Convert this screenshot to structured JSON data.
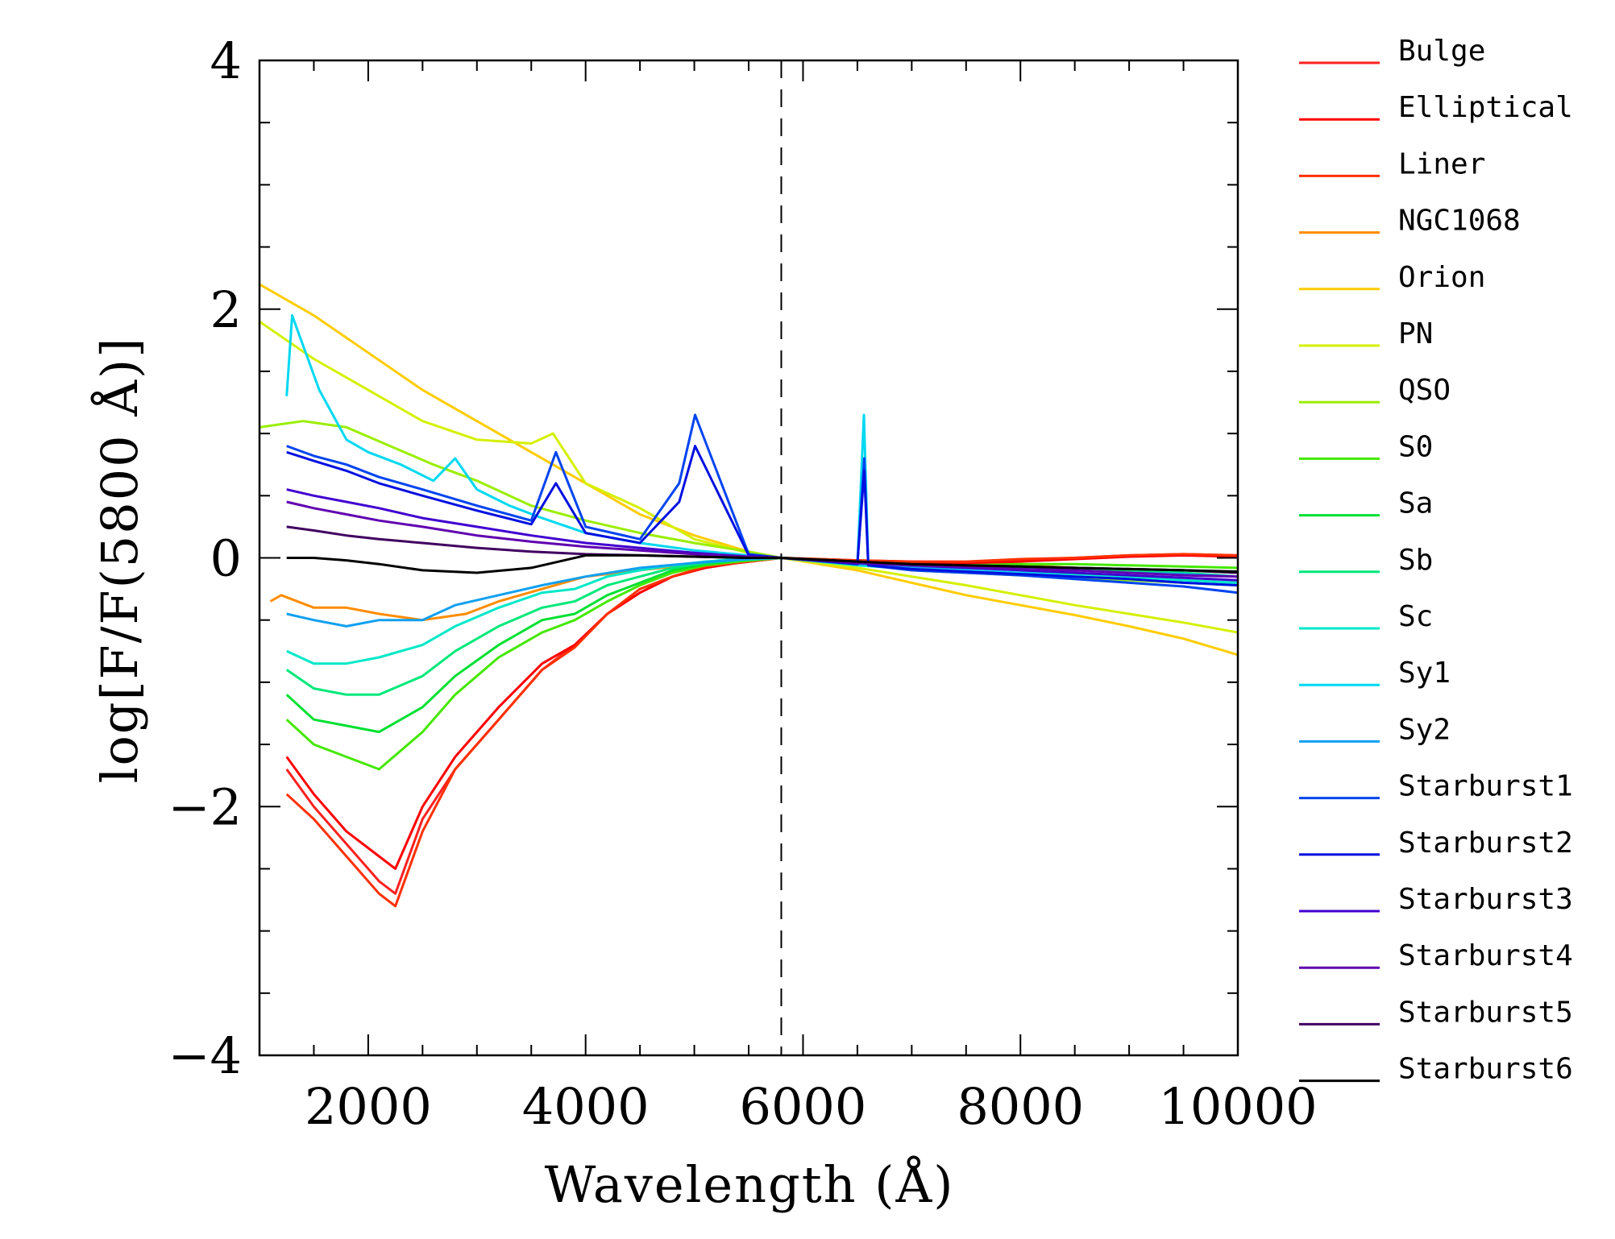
{
  "chart_data": {
    "type": "line",
    "xlabel": "Wavelength (Å)",
    "ylabel": "log[F/F(5800 Å)]",
    "xlim": [
      1000,
      10000
    ],
    "ylim": [
      -4,
      4
    ],
    "x_ticks": [
      2000,
      4000,
      6000,
      8000,
      10000
    ],
    "x_tick_labels": [
      "2000",
      "4000",
      "6000",
      "8000",
      "10000"
    ],
    "y_ticks": [
      -4,
      -2,
      0,
      2,
      4
    ],
    "y_tick_labels": [
      "−4",
      "−2",
      "0",
      "2",
      "4"
    ],
    "reference_line": {
      "x": 5800,
      "style": "dashed"
    },
    "legend_position": "right",
    "grid": false,
    "series": [
      {
        "name": "Bulge",
        "color": "#ff2020",
        "x": [
          1250,
          1500,
          1800,
          2100,
          2250,
          2500,
          2800,
          3200,
          3600,
          3900,
          4200,
          4500,
          4800,
          5100,
          5400,
          5800,
          6500,
          7000,
          7500,
          8000,
          8500,
          9000,
          9500,
          10000
        ],
        "y": [
          -1.7,
          -2.0,
          -2.3,
          -2.6,
          -2.7,
          -2.1,
          -1.7,
          -1.3,
          -0.9,
          -0.7,
          -0.45,
          -0.28,
          -0.15,
          -0.08,
          -0.04,
          0.0,
          -0.02,
          -0.03,
          -0.04,
          -0.02,
          0.0,
          0.02,
          0.03,
          0.02
        ]
      },
      {
        "name": "Elliptical",
        "color": "#ff0000",
        "x": [
          1250,
          1500,
          1800,
          2100,
          2250,
          2500,
          2800,
          3200,
          3600,
          3900,
          4200,
          4500,
          4800,
          5100,
          5400,
          5800,
          6500,
          7000,
          7500,
          8000,
          8500,
          9000,
          9500,
          10000
        ],
        "y": [
          -1.6,
          -1.9,
          -2.2,
          -2.4,
          -2.5,
          -2.0,
          -1.6,
          -1.2,
          -0.85,
          -0.7,
          -0.45,
          -0.28,
          -0.15,
          -0.08,
          -0.04,
          0.0,
          -0.03,
          -0.04,
          -0.05,
          -0.03,
          -0.01,
          0.01,
          0.02,
          0.01
        ]
      },
      {
        "name": "Liner",
        "color": "#ff3000",
        "x": [
          1250,
          1500,
          1800,
          2100,
          2250,
          2500,
          2800,
          3200,
          3600,
          3900,
          4200,
          4500,
          4800,
          5100,
          5400,
          5800,
          6500,
          7000,
          7500,
          8000,
          8500,
          9000,
          9500,
          10000
        ],
        "y": [
          -1.9,
          -2.1,
          -2.4,
          -2.7,
          -2.8,
          -2.2,
          -1.7,
          -1.3,
          -0.9,
          -0.72,
          -0.45,
          -0.25,
          -0.15,
          -0.07,
          -0.04,
          0.0,
          -0.02,
          -0.03,
          -0.03,
          -0.01,
          0.0,
          0.02,
          0.03,
          0.02
        ]
      },
      {
        "name": "NGC1068",
        "color": "#ff8c00",
        "x": [
          1100,
          1200,
          1500,
          1800,
          2100,
          2500,
          2900,
          3200,
          3600,
          4000,
          4500,
          5000,
          5500,
          5800,
          6500,
          7000,
          7500,
          8000,
          8500,
          9000,
          9500,
          10000
        ],
        "y": [
          -0.35,
          -0.3,
          -0.4,
          -0.4,
          -0.45,
          -0.5,
          -0.45,
          -0.35,
          -0.25,
          -0.15,
          -0.1,
          -0.05,
          -0.02,
          0.0,
          -0.05,
          -0.07,
          -0.08,
          -0.06,
          -0.08,
          -0.1,
          -0.1,
          -0.12
        ]
      },
      {
        "name": "Orion",
        "color": "#ffcc00",
        "x": [
          1000,
          1500,
          2000,
          2500,
          3000,
          3500,
          4000,
          4500,
          5000,
          5500,
          5800,
          6500,
          7000,
          7500,
          8000,
          8500,
          9000,
          9500,
          10000
        ],
        "y": [
          2.2,
          1.95,
          1.65,
          1.35,
          1.1,
          0.85,
          0.6,
          0.35,
          0.18,
          0.05,
          0.0,
          -0.1,
          -0.2,
          -0.3,
          -0.38,
          -0.46,
          -0.55,
          -0.65,
          -0.78
        ]
      },
      {
        "name": "PN",
        "color": "#d4f000",
        "x": [
          1000,
          1500,
          2000,
          2500,
          3000,
          3500,
          3700,
          4000,
          4500,
          5000,
          5500,
          5800,
          6500,
          7000,
          7500,
          8000,
          8500,
          9000,
          9500,
          10000
        ],
        "y": [
          1.9,
          1.6,
          1.35,
          1.1,
          0.95,
          0.92,
          1.0,
          0.6,
          0.4,
          0.15,
          0.04,
          0.0,
          -0.08,
          -0.15,
          -0.22,
          -0.3,
          -0.38,
          -0.45,
          -0.52,
          -0.6
        ]
      },
      {
        "name": "QSO",
        "color": "#9aee00",
        "x": [
          1000,
          1400,
          1800,
          2200,
          2600,
          3000,
          3500,
          4000,
          4500,
          5000,
          5500,
          5800,
          6500,
          7000,
          7500,
          8000,
          8500,
          9000,
          9500,
          10000
        ],
        "y": [
          1.05,
          1.1,
          1.05,
          0.9,
          0.75,
          0.62,
          0.42,
          0.3,
          0.2,
          0.12,
          0.05,
          0.0,
          -0.05,
          -0.1,
          -0.12,
          -0.14,
          -0.16,
          -0.18,
          -0.2,
          -0.22
        ]
      },
      {
        "name": "S0",
        "color": "#44e800",
        "x": [
          1250,
          1500,
          1800,
          2100,
          2500,
          2800,
          3200,
          3600,
          3900,
          4200,
          4500,
          4800,
          5100,
          5400,
          5800,
          6500,
          7000,
          7500,
          8000,
          8500,
          9000,
          9500,
          10000
        ],
        "y": [
          -1.3,
          -1.5,
          -1.6,
          -1.7,
          -1.4,
          -1.1,
          -0.8,
          -0.6,
          -0.5,
          -0.35,
          -0.22,
          -0.12,
          -0.06,
          -0.03,
          0.0,
          -0.03,
          -0.05,
          -0.06,
          -0.05,
          -0.05,
          -0.06,
          -0.07,
          -0.08
        ]
      },
      {
        "name": "Sa",
        "color": "#00e030",
        "x": [
          1250,
          1500,
          1800,
          2100,
          2500,
          2800,
          3200,
          3600,
          3900,
          4200,
          4500,
          4800,
          5100,
          5400,
          5800,
          6500,
          7000,
          7500,
          8000,
          8500,
          9000,
          9500,
          10000
        ],
        "y": [
          -1.1,
          -1.3,
          -1.35,
          -1.4,
          -1.2,
          -0.95,
          -0.7,
          -0.5,
          -0.45,
          -0.3,
          -0.2,
          -0.1,
          -0.05,
          -0.02,
          0.0,
          -0.04,
          -0.06,
          -0.07,
          -0.07,
          -0.08,
          -0.09,
          -0.1,
          -0.12
        ]
      },
      {
        "name": "Sb",
        "color": "#00e87a",
        "x": [
          1250,
          1500,
          1800,
          2100,
          2500,
          2800,
          3200,
          3600,
          3900,
          4200,
          4500,
          4800,
          5100,
          5400,
          5800,
          6500,
          7000,
          7500,
          8000,
          8500,
          9000,
          9500,
          10000
        ],
        "y": [
          -0.9,
          -1.05,
          -1.1,
          -1.1,
          -0.95,
          -0.75,
          -0.55,
          -0.4,
          -0.35,
          -0.22,
          -0.15,
          -0.08,
          -0.04,
          -0.02,
          0.0,
          -0.05,
          -0.07,
          -0.08,
          -0.08,
          -0.09,
          -0.1,
          -0.12,
          -0.15
        ]
      },
      {
        "name": "Sc",
        "color": "#00e8c8",
        "x": [
          1250,
          1500,
          1800,
          2100,
          2500,
          2800,
          3200,
          3600,
          3900,
          4200,
          4500,
          4800,
          5100,
          5400,
          5800,
          6500,
          7000,
          7500,
          8000,
          8500,
          9000,
          9500,
          10000
        ],
        "y": [
          -0.75,
          -0.85,
          -0.85,
          -0.8,
          -0.7,
          -0.55,
          -0.4,
          -0.28,
          -0.25,
          -0.15,
          -0.1,
          -0.06,
          -0.03,
          -0.01,
          0.0,
          -0.06,
          -0.09,
          -0.11,
          -0.12,
          -0.13,
          -0.15,
          -0.18,
          -0.2
        ]
      },
      {
        "name": "Sy1",
        "color": "#00d8f0",
        "x": [
          1250,
          1300,
          1550,
          1800,
          2000,
          2300,
          2600,
          2800,
          3000,
          3300,
          3600,
          4000,
          4500,
          5000,
          5500,
          5800,
          6500,
          6560,
          6600,
          7000,
          7500,
          8000,
          8500,
          9000,
          9500,
          10000
        ],
        "y": [
          1.3,
          1.95,
          1.35,
          0.95,
          0.85,
          0.75,
          0.62,
          0.8,
          0.55,
          0.42,
          0.32,
          0.2,
          0.12,
          0.06,
          0.02,
          0.0,
          -0.05,
          1.15,
          -0.05,
          -0.08,
          -0.1,
          -0.12,
          -0.15,
          -0.17,
          -0.2,
          -0.22
        ]
      },
      {
        "name": "Sy2",
        "color": "#10a0f0",
        "x": [
          1250,
          1500,
          1800,
          2100,
          2500,
          2800,
          3200,
          3600,
          4000,
          4500,
          5000,
          5500,
          5800,
          6500,
          7000,
          7500,
          8000,
          8500,
          9000,
          9500,
          10000
        ],
        "y": [
          -0.45,
          -0.5,
          -0.55,
          -0.5,
          -0.5,
          -0.38,
          -0.3,
          -0.22,
          -0.15,
          -0.08,
          -0.04,
          -0.01,
          0.0,
          -0.05,
          -0.07,
          -0.08,
          -0.09,
          -0.1,
          -0.12,
          -0.13,
          -0.15
        ]
      },
      {
        "name": "Starburst1",
        "color": "#0044f0",
        "x": [
          1250,
          1500,
          1800,
          2100,
          2500,
          3000,
          3500,
          3727,
          4000,
          4500,
          4861,
          5007,
          5500,
          5800,
          6500,
          6563,
          6600,
          7000,
          7500,
          8000,
          8500,
          9000,
          9500,
          10000
        ],
        "y": [
          0.9,
          0.82,
          0.75,
          0.65,
          0.55,
          0.42,
          0.3,
          0.85,
          0.25,
          0.15,
          0.6,
          1.15,
          0.03,
          0.0,
          -0.05,
          0.8,
          -0.06,
          -0.1,
          -0.12,
          -0.14,
          -0.17,
          -0.2,
          -0.23,
          -0.28
        ]
      },
      {
        "name": "Starburst2",
        "color": "#0010e0",
        "x": [
          1250,
          1500,
          1800,
          2100,
          2500,
          3000,
          3500,
          3727,
          4000,
          4500,
          4861,
          5007,
          5500,
          5800,
          6500,
          6563,
          6600,
          7000,
          7500,
          8000,
          8500,
          9000,
          9500,
          10000
        ],
        "y": [
          0.85,
          0.78,
          0.7,
          0.6,
          0.5,
          0.38,
          0.27,
          0.6,
          0.2,
          0.12,
          0.45,
          0.9,
          0.02,
          0.0,
          -0.05,
          0.7,
          -0.06,
          -0.09,
          -0.11,
          -0.13,
          -0.15,
          -0.17,
          -0.2,
          -0.22
        ]
      },
      {
        "name": "Starburst3",
        "color": "#4000d0",
        "x": [
          1250,
          1500,
          1800,
          2100,
          2500,
          3000,
          3500,
          4000,
          4500,
          5000,
          5500,
          5800,
          6500,
          7000,
          7500,
          8000,
          8500,
          9000,
          9500,
          10000
        ],
        "y": [
          0.55,
          0.5,
          0.45,
          0.4,
          0.32,
          0.25,
          0.18,
          0.12,
          0.08,
          0.04,
          0.01,
          0.0,
          -0.04,
          -0.06,
          -0.08,
          -0.1,
          -0.12,
          -0.14,
          -0.16,
          -0.18
        ]
      },
      {
        "name": "Starburst4",
        "color": "#6000b0",
        "x": [
          1250,
          1500,
          1800,
          2100,
          2500,
          3000,
          3500,
          4000,
          4500,
          5000,
          5500,
          5800,
          6500,
          7000,
          7500,
          8000,
          8500,
          9000,
          9500,
          10000
        ],
        "y": [
          0.45,
          0.4,
          0.35,
          0.3,
          0.25,
          0.18,
          0.13,
          0.09,
          0.06,
          0.03,
          0.01,
          0.0,
          -0.04,
          -0.06,
          -0.07,
          -0.09,
          -0.1,
          -0.12,
          -0.14,
          -0.15
        ]
      },
      {
        "name": "Starburst5",
        "color": "#400060",
        "x": [
          1250,
          1500,
          1800,
          2100,
          2500,
          3000,
          3500,
          4000,
          4500,
          5000,
          5500,
          5800,
          6500,
          7000,
          7500,
          8000,
          8500,
          9000,
          9500,
          10000
        ],
        "y": [
          0.25,
          0.22,
          0.18,
          0.15,
          0.12,
          0.08,
          0.05,
          0.03,
          0.02,
          0.01,
          0.0,
          0.0,
          -0.03,
          -0.05,
          -0.06,
          -0.07,
          -0.08,
          -0.09,
          -0.1,
          -0.12
        ]
      },
      {
        "name": "Starburst6",
        "color": "#000000",
        "x": [
          1250,
          1500,
          1800,
          2100,
          2500,
          3000,
          3500,
          4000,
          4500,
          5000,
          5500,
          5800,
          6500,
          7000,
          7500,
          8000,
          8500,
          9000,
          9500,
          10000
        ],
        "y": [
          0.0,
          0.0,
          -0.02,
          -0.05,
          -0.1,
          -0.12,
          -0.08,
          0.02,
          0.02,
          0.01,
          0.0,
          0.0,
          -0.03,
          -0.05,
          -0.06,
          -0.07,
          -0.08,
          -0.09,
          -0.1,
          -0.11
        ]
      }
    ]
  }
}
